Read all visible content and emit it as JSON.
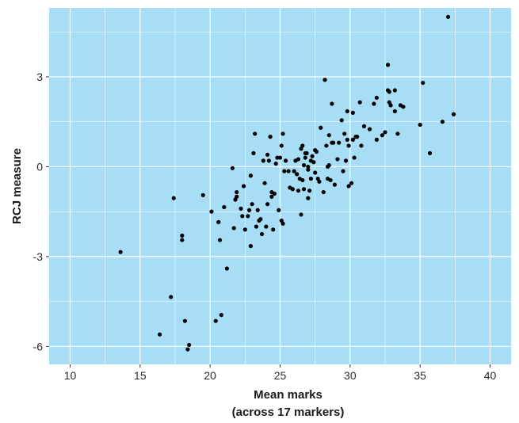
{
  "chart_data": {
    "type": "scatter",
    "title": "",
    "xlabel_lines": [
      "Mean marks",
      "(across 17 markers)"
    ],
    "ylabel": "RCJ measure",
    "xlim": [
      8.5,
      41.5
    ],
    "ylim": [
      -6.6,
      5.3
    ],
    "xticks": [
      10,
      15,
      20,
      25,
      30,
      35,
      40
    ],
    "yticks": [
      -6,
      -3,
      0,
      3
    ],
    "ytick_labels": [
      "-6",
      "-3",
      "0",
      "3"
    ],
    "grid": true,
    "legend": "none",
    "colors": {
      "panel": "#a7def6",
      "grid_major": "#ffffff",
      "points": "#000000"
    },
    "series": [
      {
        "points": [
          [
            13.6,
            -2.85
          ],
          [
            16.4,
            -5.6
          ],
          [
            17.2,
            -4.35
          ],
          [
            17.4,
            -1.05
          ],
          [
            18.0,
            -2.3
          ],
          [
            18.0,
            -2.45
          ],
          [
            18.2,
            -5.15
          ],
          [
            18.4,
            -6.1
          ],
          [
            18.5,
            -5.95
          ],
          [
            19.5,
            -0.95
          ],
          [
            20.1,
            -1.5
          ],
          [
            20.4,
            -5.15
          ],
          [
            20.6,
            -1.85
          ],
          [
            20.7,
            -2.45
          ],
          [
            20.8,
            -4.95
          ],
          [
            21.0,
            -1.35
          ],
          [
            21.2,
            -3.4
          ],
          [
            21.6,
            -0.05
          ],
          [
            21.7,
            -2.05
          ],
          [
            21.8,
            -1.1
          ],
          [
            21.9,
            -0.85
          ],
          [
            21.9,
            -1.0
          ],
          [
            22.2,
            -1.4
          ],
          [
            22.3,
            -1.65
          ],
          [
            22.4,
            -0.65
          ],
          [
            22.5,
            -2.1
          ],
          [
            22.7,
            -1.65
          ],
          [
            22.8,
            -1.45
          ],
          [
            22.9,
            -0.3
          ],
          [
            22.9,
            -2.65
          ],
          [
            23.0,
            -1.25
          ],
          [
            23.1,
            0.45
          ],
          [
            23.2,
            1.1
          ],
          [
            23.3,
            -2.0
          ],
          [
            23.4,
            -1.45
          ],
          [
            23.5,
            -1.8
          ],
          [
            23.6,
            -1.75
          ],
          [
            23.7,
            -2.25
          ],
          [
            23.8,
            0.2
          ],
          [
            23.9,
            -0.55
          ],
          [
            24.0,
            -2.0
          ],
          [
            24.1,
            0.4
          ],
          [
            24.1,
            -1.25
          ],
          [
            24.2,
            0.2
          ],
          [
            24.3,
            1.0
          ],
          [
            24.4,
            -1.0
          ],
          [
            24.4,
            -0.85
          ],
          [
            24.5,
            -2.1
          ],
          [
            24.6,
            -0.9
          ],
          [
            24.7,
            0.1
          ],
          [
            24.8,
            0.3
          ],
          [
            24.9,
            -1.45
          ],
          [
            25.0,
            0.3
          ],
          [
            25.1,
            -1.8
          ],
          [
            25.1,
            0.7
          ],
          [
            25.2,
            -1.9
          ],
          [
            25.2,
            1.1
          ],
          [
            25.3,
            -0.15
          ],
          [
            25.4,
            0.2
          ],
          [
            25.6,
            -0.15
          ],
          [
            25.7,
            -0.7
          ],
          [
            25.9,
            -0.75
          ],
          [
            26.0,
            -0.15
          ],
          [
            26.1,
            0.2
          ],
          [
            26.2,
            -0.25
          ],
          [
            26.3,
            0.25
          ],
          [
            26.3,
            -0.8
          ],
          [
            26.4,
            -0.4
          ],
          [
            26.5,
            0.6
          ],
          [
            26.5,
            -1.6
          ],
          [
            26.6,
            -0.45
          ],
          [
            26.6,
            0.7
          ],
          [
            26.7,
            -0.75
          ],
          [
            26.7,
            0.05
          ],
          [
            26.8,
            0.3
          ],
          [
            26.8,
            0.45
          ],
          [
            26.9,
            0.45
          ],
          [
            27.0,
            -0.1
          ],
          [
            27.0,
            0.0
          ],
          [
            27.0,
            -1.05
          ],
          [
            27.1,
            -0.8
          ],
          [
            27.2,
            0.2
          ],
          [
            27.2,
            -0.4
          ],
          [
            27.3,
            0.35
          ],
          [
            27.4,
            0.15
          ],
          [
            27.5,
            -0.2
          ],
          [
            27.5,
            0.55
          ],
          [
            27.6,
            0.5
          ],
          [
            27.7,
            -0.4
          ],
          [
            27.8,
            -0.5
          ],
          [
            27.9,
            1.3
          ],
          [
            28.1,
            -0.85
          ],
          [
            28.2,
            2.9
          ],
          [
            28.3,
            0.7
          ],
          [
            28.4,
            0.0
          ],
          [
            28.4,
            -0.4
          ],
          [
            28.5,
            1.05
          ],
          [
            28.5,
            0.05
          ],
          [
            28.6,
            -0.45
          ],
          [
            28.7,
            2.1
          ],
          [
            28.7,
            0.8
          ],
          [
            28.8,
            0.8
          ],
          [
            28.9,
            -0.6
          ],
          [
            29.1,
            0.25
          ],
          [
            29.2,
            0.8
          ],
          [
            29.4,
            1.55
          ],
          [
            29.5,
            -0.15
          ],
          [
            29.6,
            1.1
          ],
          [
            29.7,
            0.2
          ],
          [
            29.8,
            1.85
          ],
          [
            29.8,
            0.9
          ],
          [
            29.9,
            -0.65
          ],
          [
            29.9,
            0.7
          ],
          [
            30.1,
            -0.55
          ],
          [
            30.2,
            0.9
          ],
          [
            30.2,
            1.8
          ],
          [
            30.3,
            0.3
          ],
          [
            30.4,
            1.0
          ],
          [
            30.5,
            1.0
          ],
          [
            30.7,
            2.15
          ],
          [
            30.8,
            0.7
          ],
          [
            31.0,
            1.35
          ],
          [
            31.4,
            1.25
          ],
          [
            31.7,
            2.1
          ],
          [
            31.9,
            2.3
          ],
          [
            31.9,
            0.9
          ],
          [
            32.3,
            1.05
          ],
          [
            32.5,
            1.15
          ],
          [
            32.7,
            3.4
          ],
          [
            32.7,
            2.55
          ],
          [
            32.8,
            2.5
          ],
          [
            32.8,
            2.15
          ],
          [
            32.9,
            2.05
          ],
          [
            33.2,
            2.55
          ],
          [
            33.2,
            1.85
          ],
          [
            33.4,
            1.1
          ],
          [
            33.6,
            2.05
          ],
          [
            33.8,
            2.0
          ],
          [
            35.0,
            1.4
          ],
          [
            35.2,
            2.8
          ],
          [
            35.7,
            0.45
          ],
          [
            36.6,
            1.5
          ],
          [
            37.0,
            5.0
          ],
          [
            37.4,
            1.75
          ]
        ]
      }
    ]
  }
}
